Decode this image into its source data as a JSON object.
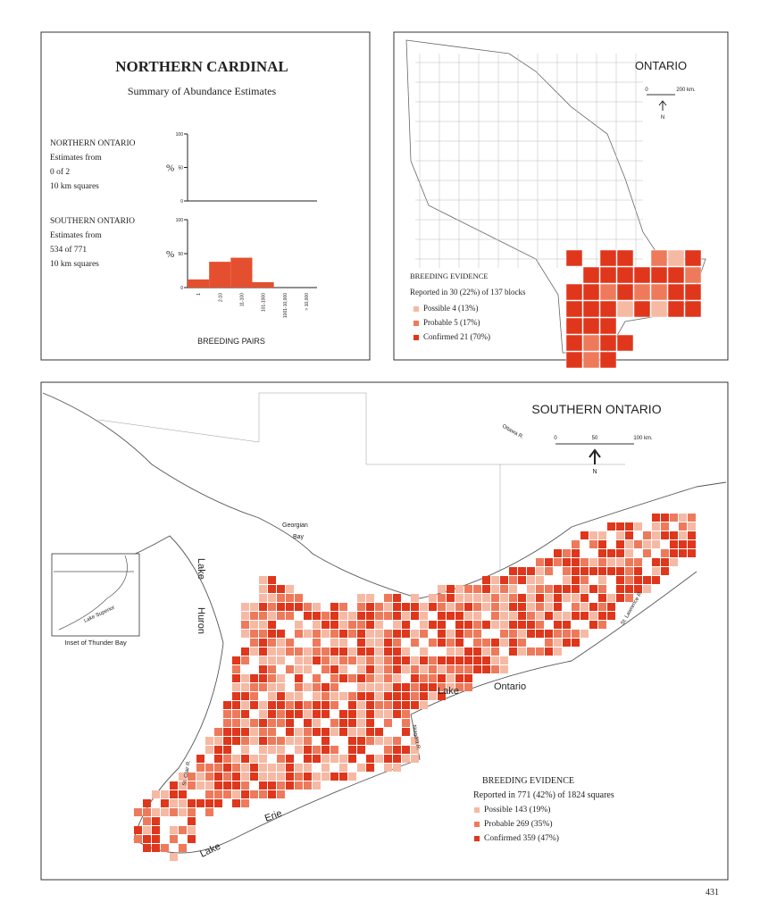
{
  "summary": {
    "title": "NORTHERN CARDINAL",
    "subtitle": "Summary of Abundance Estimates",
    "northern": {
      "lines": [
        "NORTHERN ONTARIO",
        "Estimates from",
        "0 of 2",
        "10 km squares"
      ],
      "y_label": "%",
      "ylim": [
        0,
        100
      ],
      "yticks": [
        0,
        50,
        100
      ]
    },
    "southern": {
      "lines": [
        "SOUTHERN ONTARIO",
        "Estimates from",
        "534 of 771",
        "10 km squares"
      ],
      "y_label": "%",
      "ylim": [
        0,
        100
      ],
      "yticks": [
        0,
        50,
        100
      ],
      "categories": [
        "1",
        "2-10",
        "11-100",
        "101-1000",
        "1001-10,000",
        "> 10,000"
      ],
      "values": [
        12,
        38,
        44,
        8,
        0,
        0
      ],
      "color": "#e4502f"
    },
    "x_label": "BREEDING PAIRS"
  },
  "ontario_map": {
    "title": "ONTARIO",
    "scale": [
      "0",
      "200 km."
    ],
    "north": "N",
    "legend": {
      "title": "BREEDING EVIDENCE",
      "summary": "Reported in 30 (22%) of 137 blocks",
      "items": [
        "Possible 4 (13%)",
        "Probable 5 (17%)",
        "Confirmed 21 (70%)"
      ]
    }
  },
  "southern_map": {
    "title": "SOUTHERN ONTARIO",
    "scale": [
      "0",
      "50",
      "100 km."
    ],
    "north": "N",
    "labels": [
      "Georgian",
      "Bay",
      "Lake",
      "Huron",
      "Lake",
      "Ontario",
      "Lake",
      "Erie",
      "Ottawa R.",
      "St. Lawrence R.",
      "St. Clair R.",
      "Niagara R."
    ],
    "inset": {
      "label": "Lake Superior",
      "caption": "Inset of Thunder Bay"
    },
    "legend": {
      "title": "BREEDING EVIDENCE",
      "summary": "Reported in 771 (42%) of 1824 squares",
      "items": [
        "Possible 143 (19%)",
        "Probable 269 (35%)",
        "Confirmed 359 (47%)"
      ]
    }
  },
  "page_number": "431"
}
